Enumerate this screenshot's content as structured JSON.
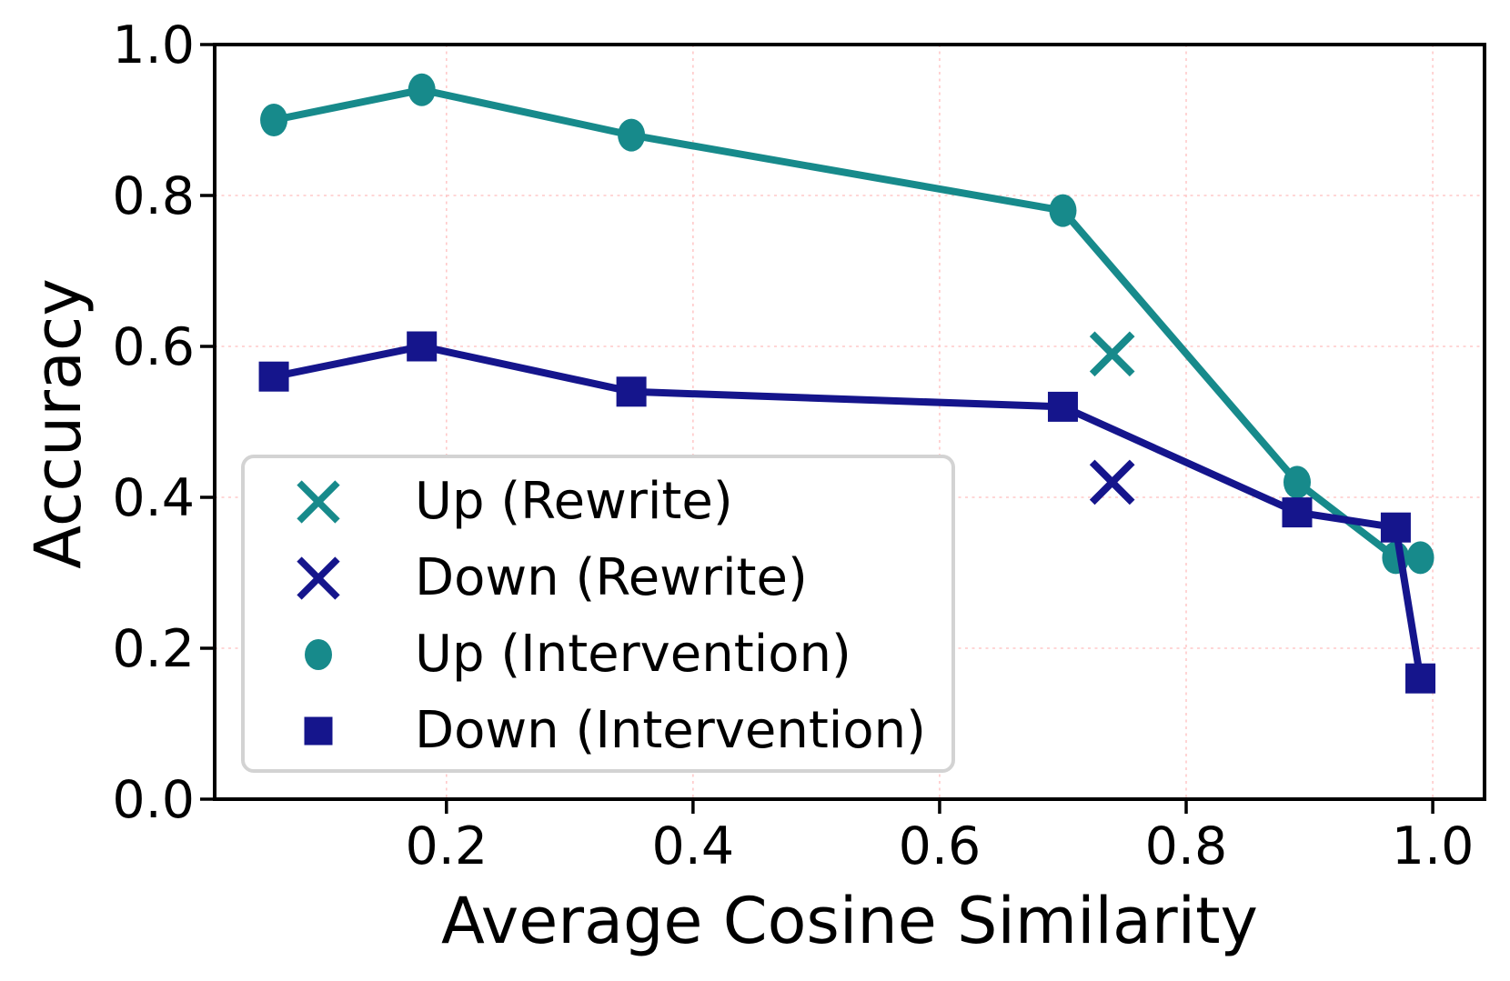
{
  "chart_data": {
    "type": "line",
    "title": "",
    "xlabel": "Average Cosine Similarity",
    "ylabel": "Accuracy",
    "xlim": [
      0.012,
      1.042
    ],
    "ylim": [
      0.0,
      1.0
    ],
    "xticks": [
      0.2,
      0.4,
      0.6,
      0.8,
      1.0
    ],
    "xtick_labels": [
      "0.2",
      "0.4",
      "0.6",
      "0.8",
      "1.0"
    ],
    "yticks": [
      0.0,
      0.2,
      0.4,
      0.6,
      0.8,
      1.0
    ],
    "ytick_labels": [
      "0.0",
      "0.2",
      "0.4",
      "0.6",
      "0.8",
      "1.0"
    ],
    "grid": true,
    "grid_color": "#ffc9c9",
    "axis_color": "#000000",
    "series": [
      {
        "name": "Up (Intervention)",
        "type": "line",
        "marker": "circle",
        "color": "#178a8b",
        "x": [
          0.06,
          0.18,
          0.35,
          0.7,
          0.89,
          0.97,
          0.99
        ],
        "y": [
          0.9,
          0.94,
          0.88,
          0.78,
          0.42,
          0.32,
          0.32
        ]
      },
      {
        "name": "Down (Intervention)",
        "type": "line",
        "marker": "square",
        "color": "#15158c",
        "x": [
          0.06,
          0.18,
          0.35,
          0.7,
          0.89,
          0.97,
          0.99
        ],
        "y": [
          0.56,
          0.6,
          0.54,
          0.52,
          0.38,
          0.36,
          0.16
        ]
      },
      {
        "name": "Up (Rewrite)",
        "type": "scatter",
        "marker": "x",
        "color": "#178a8b",
        "x": [
          0.74
        ],
        "y": [
          0.59
        ]
      },
      {
        "name": "Down (Rewrite)",
        "type": "scatter",
        "marker": "x",
        "color": "#15158c",
        "x": [
          0.74
        ],
        "y": [
          0.42
        ]
      }
    ],
    "legend": {
      "position": "lower left",
      "entries": [
        {
          "label": "Up (Rewrite)",
          "marker": "x",
          "color": "#178a8b"
        },
        {
          "label": "Down (Rewrite)",
          "marker": "x",
          "color": "#15158c"
        },
        {
          "label": "Up (Intervention)",
          "marker": "circle",
          "color": "#178a8b"
        },
        {
          "label": "Down (Intervention)",
          "marker": "square",
          "color": "#15158c"
        }
      ]
    }
  }
}
